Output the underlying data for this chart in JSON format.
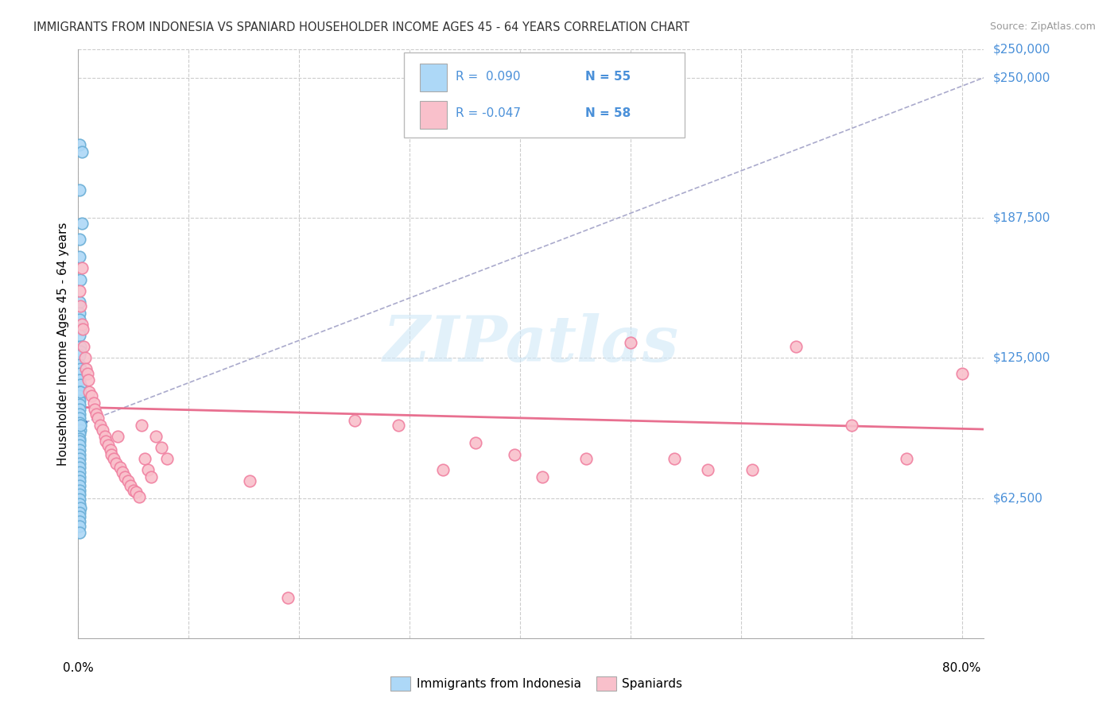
{
  "title": "IMMIGRANTS FROM INDONESIA VS SPANIARD HOUSEHOLDER INCOME AGES 45 - 64 YEARS CORRELATION CHART",
  "source": "Source: ZipAtlas.com",
  "ylabel": "Householder Income Ages 45 - 64 years",
  "ytick_labels": [
    "$62,500",
    "$125,000",
    "$187,500",
    "$250,000"
  ],
  "ytick_values": [
    62500,
    125000,
    187500,
    250000
  ],
  "ymin": 0,
  "ymax": 262500,
  "xmin": 0.0,
  "xmax": 0.82,
  "legend_r1": "R =  0.090",
  "legend_n1": "N = 55",
  "legend_r2": "R = -0.047",
  "legend_n2": "N = 58",
  "blue_fill": "#ADD8F7",
  "pink_fill": "#F9C0CB",
  "blue_edge": "#6AAED6",
  "pink_edge": "#F080A0",
  "blue_line_color": "#3070B8",
  "pink_line_color": "#E87090",
  "dashed_line_color": "#AAAACC",
  "legend_text_color": "#4A90D9",
  "watermark": "ZIPatlas",
  "blue_x": [
    0.001,
    0.003,
    0.001,
    0.001,
    0.001,
    0.002,
    0.001,
    0.001,
    0.001,
    0.002,
    0.001,
    0.002,
    0.002,
    0.001,
    0.003,
    0.001,
    0.002,
    0.001,
    0.001,
    0.002,
    0.001,
    0.001,
    0.001,
    0.001,
    0.001,
    0.001,
    0.001,
    0.001,
    0.002,
    0.002,
    0.001,
    0.001,
    0.001,
    0.001,
    0.001,
    0.001,
    0.001,
    0.001,
    0.001,
    0.001,
    0.001,
    0.001,
    0.001,
    0.001,
    0.002,
    0.001,
    0.001,
    0.001,
    0.002,
    0.001,
    0.001,
    0.001,
    0.001,
    0.001,
    0.002
  ],
  "blue_y": [
    220000,
    217000,
    200000,
    178000,
    170000,
    160000,
    150000,
    145000,
    142000,
    138000,
    135000,
    130000,
    128000,
    126000,
    185000,
    122000,
    120000,
    118000,
    115000,
    113000,
    110000,
    108000,
    106000,
    104000,
    102000,
    100000,
    98000,
    96000,
    95000,
    93000,
    91000,
    89000,
    88000,
    86000,
    84000,
    82000,
    80000,
    78000,
    76000,
    74000,
    72000,
    70000,
    68000,
    66000,
    110000,
    64000,
    62000,
    60000,
    58000,
    56000,
    54000,
    52000,
    50000,
    47000,
    95000
  ],
  "pink_x": [
    0.001,
    0.002,
    0.003,
    0.003,
    0.004,
    0.005,
    0.006,
    0.007,
    0.008,
    0.009,
    0.01,
    0.012,
    0.014,
    0.015,
    0.016,
    0.018,
    0.02,
    0.022,
    0.024,
    0.025,
    0.027,
    0.029,
    0.03,
    0.032,
    0.034,
    0.036,
    0.038,
    0.04,
    0.042,
    0.045,
    0.047,
    0.05,
    0.052,
    0.055,
    0.057,
    0.06,
    0.063,
    0.066,
    0.07,
    0.075,
    0.08,
    0.155,
    0.19,
    0.25,
    0.29,
    0.33,
    0.36,
    0.395,
    0.42,
    0.46,
    0.5,
    0.54,
    0.57,
    0.61,
    0.65,
    0.7,
    0.75,
    0.8
  ],
  "pink_y": [
    155000,
    148000,
    140000,
    165000,
    138000,
    130000,
    125000,
    120000,
    118000,
    115000,
    110000,
    108000,
    105000,
    102000,
    100000,
    98000,
    95000,
    93000,
    90000,
    88000,
    86000,
    84000,
    82000,
    80000,
    78000,
    90000,
    76000,
    74000,
    72000,
    70000,
    68000,
    66000,
    65000,
    63000,
    95000,
    80000,
    75000,
    72000,
    90000,
    85000,
    80000,
    70000,
    18000,
    97000,
    95000,
    75000,
    87000,
    82000,
    72000,
    80000,
    132000,
    80000,
    75000,
    75000,
    130000,
    95000,
    80000,
    118000
  ]
}
